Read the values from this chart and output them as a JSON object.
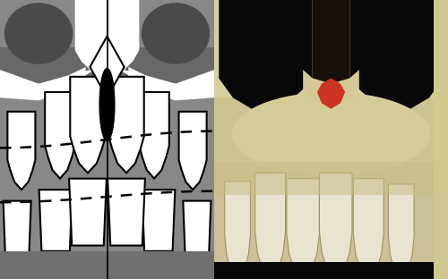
{
  "fig_width": 5.0,
  "fig_height": 3.12,
  "dpi": 100,
  "left_bg": "#a8a8a8",
  "left_dark_sinus": "#686868",
  "left_darker_sinus": "#4a4a4a",
  "white": "#ffffff",
  "black": "#000000",
  "left_bottom_dark": "#707070",
  "right_bone_light": "#ddd5a8",
  "right_bone_mid": "#c8ba88",
  "right_bone_dark": "#b8aa78",
  "right_cavity_dark": "#080808",
  "right_pink": "#cc4433",
  "right_tooth": "#e8e4cc",
  "right_edge": "#d8cc98"
}
